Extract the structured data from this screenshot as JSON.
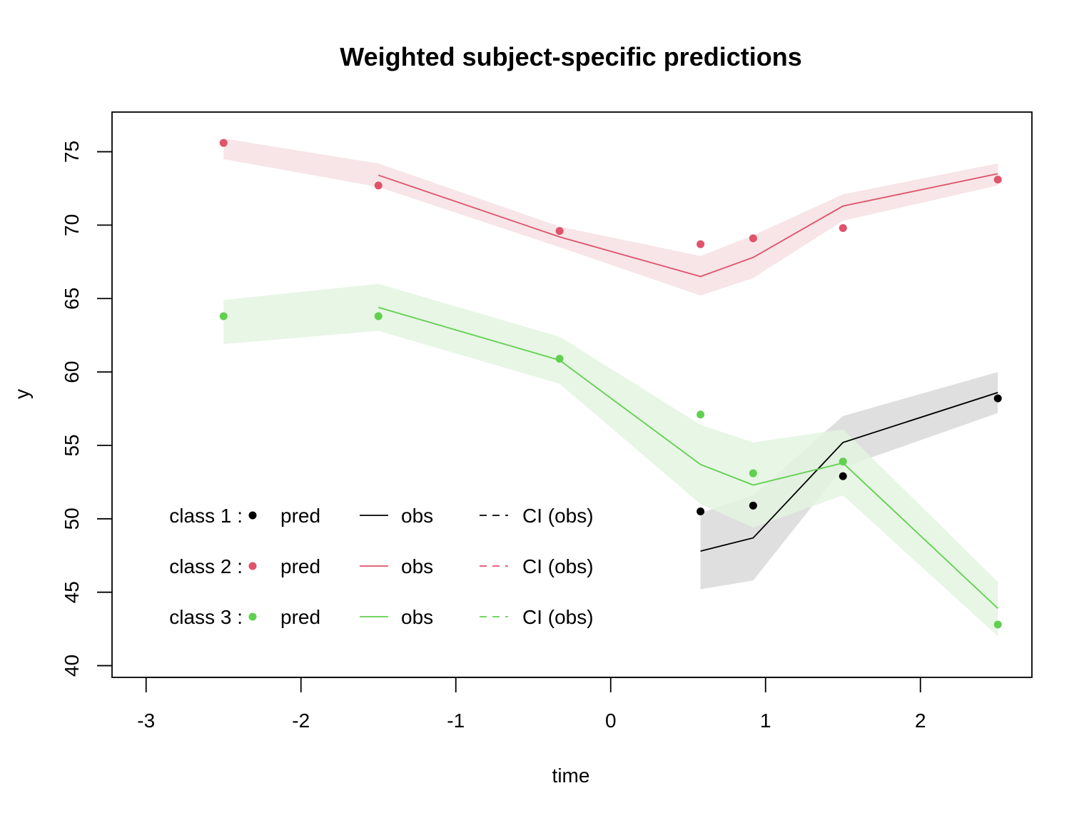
{
  "chart_data": {
    "type": "line",
    "title": "Weighted subject-specific predictions",
    "xlabel": "time",
    "ylabel": "y",
    "xlim": [
      -3.22,
      2.72
    ],
    "ylim": [
      39.2,
      77.7
    ],
    "x_ticks": [
      -3,
      -2,
      -1,
      0,
      1,
      2
    ],
    "y_ticks": [
      40,
      45,
      50,
      55,
      60,
      65,
      70,
      75
    ],
    "grid": false,
    "legend_position": "bottom-left",
    "x": [
      -2.5,
      -1.5,
      -0.33,
      0.58,
      0.92,
      1.5,
      2.5
    ],
    "series": [
      {
        "name": "class 1",
        "color": "#000000",
        "band_color": "#d9d9d9",
        "pred": [
          null,
          null,
          null,
          50.5,
          50.9,
          52.9,
          58.2
        ],
        "obs": [
          null,
          null,
          null,
          47.8,
          48.7,
          55.2,
          58.6
        ],
        "ci_lower": [
          null,
          null,
          null,
          45.2,
          45.8,
          53.5,
          57.2
        ],
        "ci_upper": [
          null,
          null,
          null,
          50.4,
          51.6,
          57.0,
          60.0
        ]
      },
      {
        "name": "class 2",
        "color": "#DF536B",
        "band_color": "#f6e0e4",
        "pred": [
          75.6,
          72.7,
          69.6,
          68.7,
          69.1,
          69.8,
          73.1
        ],
        "obs": [
          null,
          73.4,
          69.2,
          66.5,
          67.8,
          71.3,
          73.5
        ],
        "ci_lower": [
          74.5,
          72.6,
          68.5,
          65.2,
          66.4,
          70.3,
          72.7
        ],
        "ci_upper": [
          75.9,
          74.2,
          69.9,
          67.9,
          69.3,
          72.1,
          74.2
        ]
      },
      {
        "name": "class 3",
        "color": "#61D04F",
        "band_color": "#e3f4e0",
        "pred": [
          63.8,
          63.8,
          60.9,
          57.1,
          53.1,
          53.9,
          42.8
        ],
        "obs": [
          null,
          64.4,
          60.8,
          53.7,
          52.3,
          53.8,
          43.9
        ],
        "ci_lower": [
          61.9,
          62.8,
          59.2,
          51.0,
          49.4,
          51.6,
          42.0
        ],
        "ci_upper": [
          64.9,
          66.0,
          62.4,
          56.4,
          55.2,
          56.1,
          45.7
        ]
      }
    ],
    "legend": {
      "rows": [
        {
          "class_label": "class 1 :",
          "pred_label": "pred",
          "obs_label": "obs",
          "ci_label": "CI (obs)"
        },
        {
          "class_label": "class 2 :",
          "pred_label": "pred",
          "obs_label": "obs",
          "ci_label": "CI (obs)"
        },
        {
          "class_label": "class 3 :",
          "pred_label": "pred",
          "obs_label": "obs",
          "ci_label": "CI (obs)"
        }
      ]
    }
  }
}
